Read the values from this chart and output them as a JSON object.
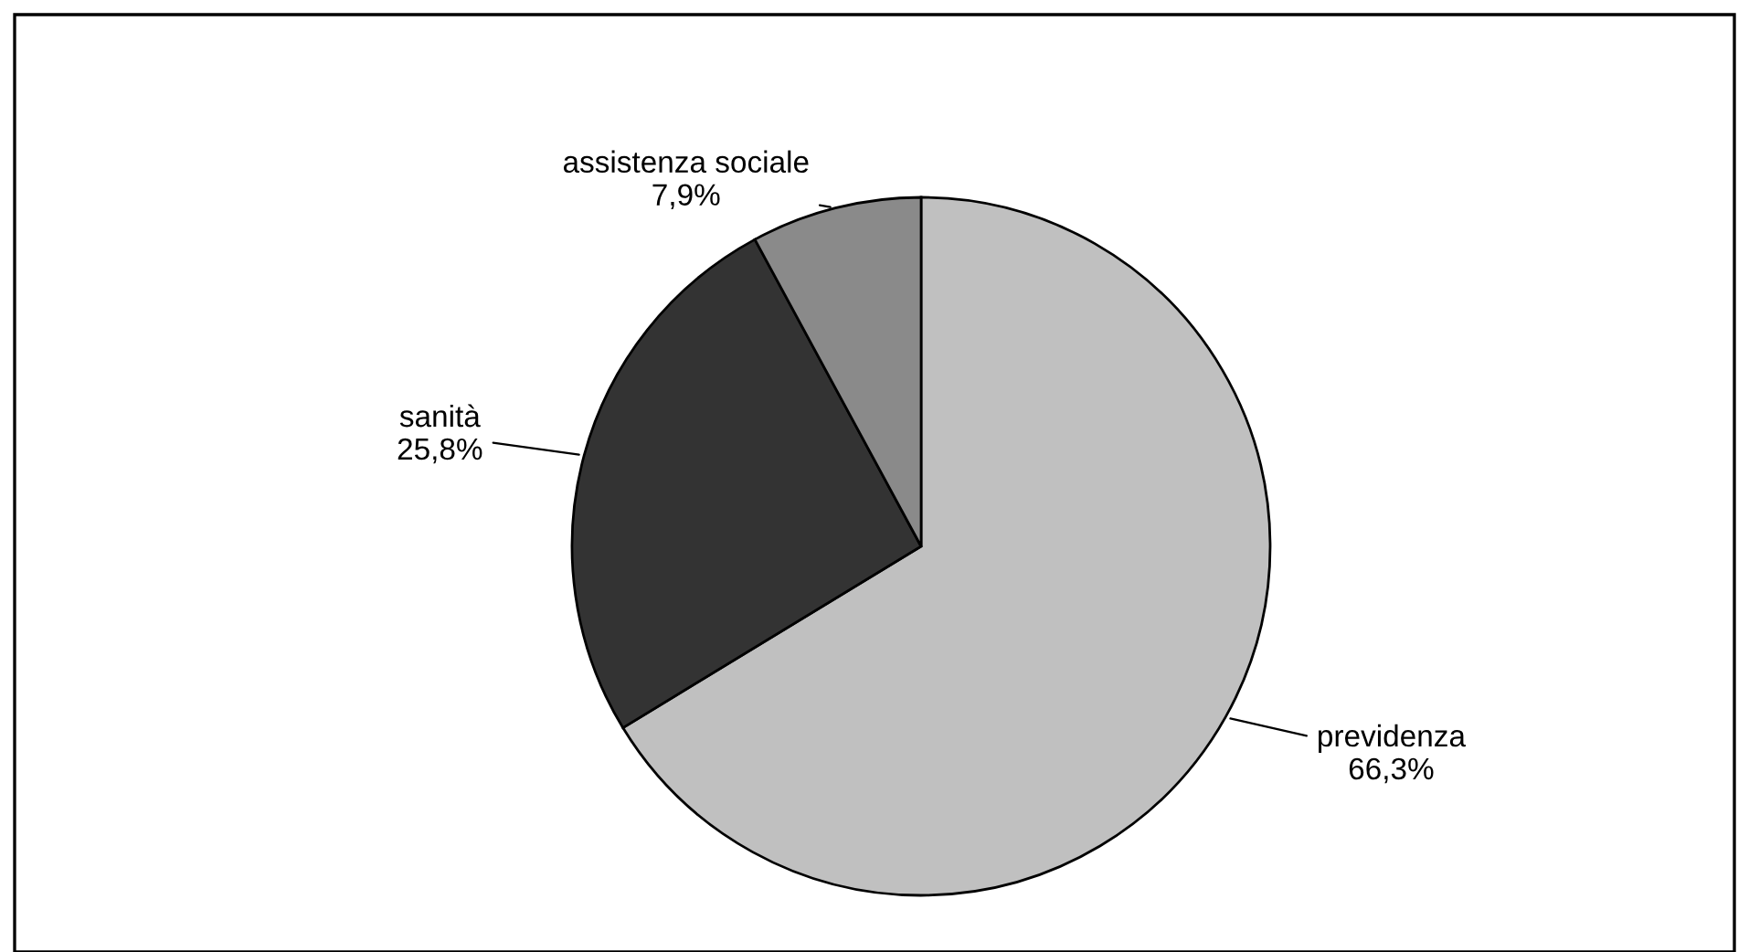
{
  "chart_data": {
    "type": "pie",
    "categories": [
      "previdenza",
      "sanità",
      "assistenza sociale"
    ],
    "values": [
      66.3,
      25.8,
      7.9
    ],
    "value_labels": [
      "66,3%",
      "25,8%",
      "7,9%"
    ],
    "colors": [
      "#c0c0c0",
      "#333333",
      "#8a8a8a"
    ],
    "legend": false
  }
}
